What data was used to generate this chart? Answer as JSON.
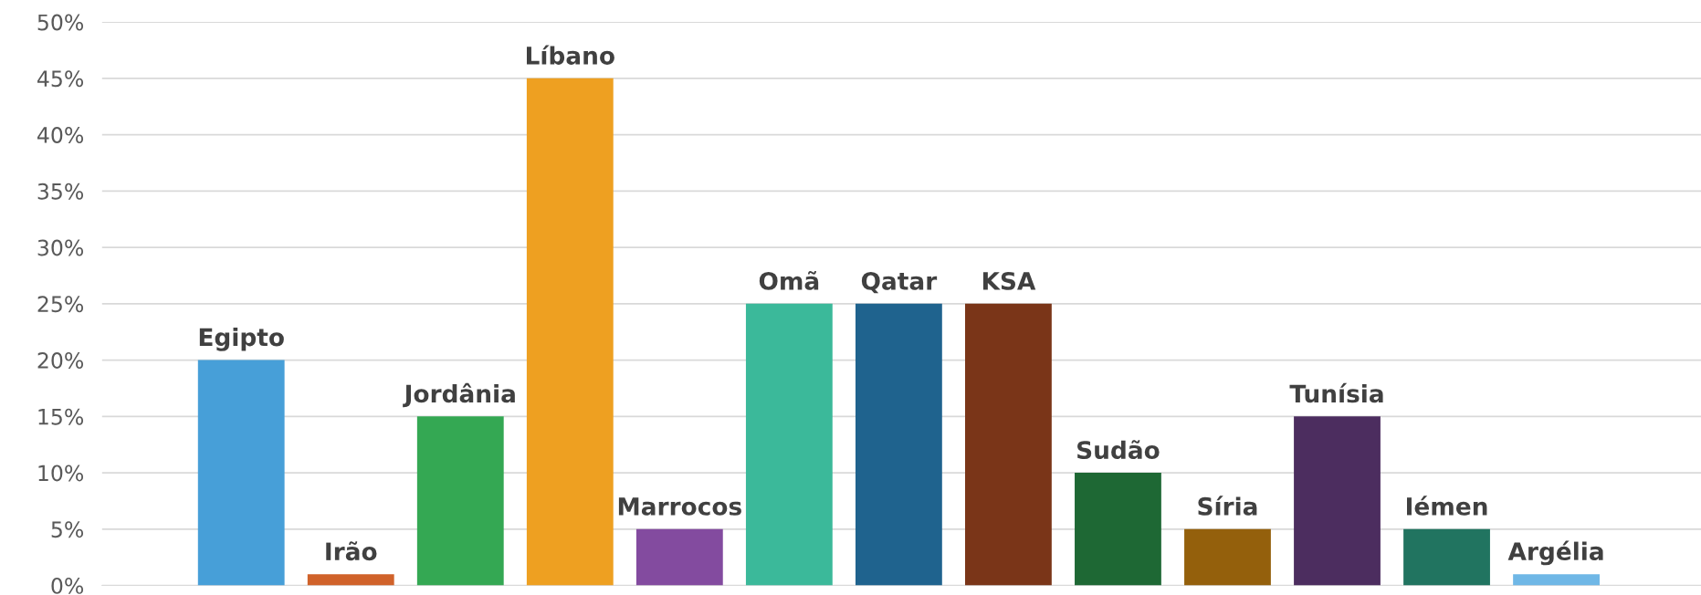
{
  "chart_data": {
    "type": "bar",
    "categories": [
      "Egipto",
      "Irão",
      "Jordânia",
      "Líbano",
      "Marrocos",
      "Omã",
      "Qatar",
      "KSA",
      "Sudão",
      "Síria",
      "Tunísia",
      "Iémen",
      "Argélia"
    ],
    "values": [
      20,
      1,
      15,
      45,
      5,
      25,
      25,
      25,
      10,
      5,
      15,
      5,
      1
    ],
    "colors": [
      "#479fd8",
      "#d0622a",
      "#34a853",
      "#eea021",
      "#834b9f",
      "#3bb99a",
      "#1f638e",
      "#7a3518",
      "#1e6834",
      "#94600c",
      "#4c2d5f",
      "#217460",
      "#6fb7e6"
    ],
    "ylim": [
      0,
      50
    ],
    "yticks": [
      {
        "value": 0,
        "label": "0%"
      },
      {
        "value": 5,
        "label": "5%"
      },
      {
        "value": 10,
        "label": "10%"
      },
      {
        "value": 15,
        "label": "15%"
      },
      {
        "value": 20,
        "label": "20%"
      },
      {
        "value": 25,
        "label": "25%"
      },
      {
        "value": 30,
        "label": "30%"
      },
      {
        "value": 35,
        "label": "35%"
      },
      {
        "value": 40,
        "label": "40%"
      },
      {
        "value": 45,
        "label": "45%"
      },
      {
        "value": 50,
        "label": "50%"
      }
    ],
    "grid": "y",
    "legend": false
  }
}
